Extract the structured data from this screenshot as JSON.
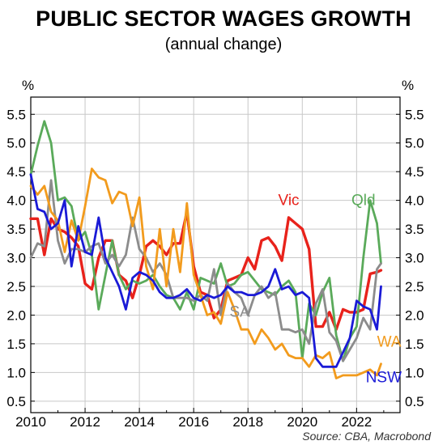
{
  "title": "PUBLIC SECTOR WAGES GROWTH",
  "subtitle": "(annual change)",
  "source": "Source: CBA, Macrobond",
  "chart_data": {
    "type": "line",
    "title": "PUBLIC SECTOR WAGES GROWTH",
    "subtitle": "(annual change)",
    "y_unit_left": "%",
    "y_unit_right": "%",
    "ylim": [
      0.3,
      5.8
    ],
    "yticks": [
      0.5,
      1.0,
      1.5,
      2.0,
      2.5,
      3.0,
      3.5,
      4.0,
      4.5,
      5.0,
      5.5
    ],
    "ytick_labels": [
      "0.5",
      "1.0",
      "1.5",
      "2.0",
      "2.5",
      "3.0",
      "3.5",
      "4.0",
      "4.5",
      "5.0",
      "5.5"
    ],
    "xlim": [
      2010,
      2023.6
    ],
    "xticks": [
      2010,
      2012,
      2014,
      2016,
      2018,
      2020,
      2022
    ],
    "xtick_labels": [
      "2010",
      "2012",
      "2014",
      "2016",
      "2018",
      "2020",
      "2022"
    ],
    "grid": true,
    "series": [
      {
        "name": "Vic",
        "color": "#e8221b",
        "x": [
          2010.0,
          2010.25,
          2010.5,
          2010.75,
          2011.0,
          2011.25,
          2011.5,
          2011.75,
          2012.0,
          2012.25,
          2012.5,
          2012.75,
          2013.0,
          2013.25,
          2013.5,
          2013.75,
          2014.0,
          2014.25,
          2014.5,
          2014.75,
          2015.0,
          2015.25,
          2015.5,
          2015.75,
          2016.0,
          2016.25,
          2016.5,
          2016.75,
          2017.0,
          2017.25,
          2017.5,
          2017.75,
          2018.0,
          2018.25,
          2018.5,
          2018.75,
          2019.0,
          2019.25,
          2019.5,
          2019.75,
          2020.0,
          2020.25,
          2020.5,
          2020.75,
          2021.0,
          2021.25,
          2021.5,
          2021.75,
          2022.0,
          2022.25,
          2022.5,
          2022.75,
          2022.9
        ],
        "y": [
          3.68,
          3.68,
          3.05,
          3.68,
          3.5,
          3.45,
          3.35,
          3.2,
          2.55,
          2.45,
          3.0,
          3.3,
          3.3,
          2.7,
          2.6,
          2.3,
          2.7,
          3.2,
          3.3,
          3.2,
          3.05,
          3.25,
          3.25,
          3.8,
          2.85,
          2.4,
          2.35,
          1.95,
          2.1,
          2.6,
          2.65,
          2.7,
          3.0,
          2.8,
          3.3,
          3.35,
          3.2,
          2.95,
          3.7,
          3.6,
          3.5,
          3.15,
          1.8,
          1.8,
          2.05,
          1.75,
          2.1,
          2.05,
          2.05,
          2.1,
          2.72,
          2.75,
          2.78
        ]
      },
      {
        "name": "Qld",
        "color": "#5aaa5a",
        "x": [
          2010.0,
          2010.25,
          2010.5,
          2010.75,
          2011.0,
          2011.25,
          2011.5,
          2011.75,
          2012.0,
          2012.25,
          2012.5,
          2012.75,
          2013.0,
          2013.25,
          2013.5,
          2013.75,
          2014.0,
          2014.25,
          2014.5,
          2014.75,
          2015.0,
          2015.25,
          2015.5,
          2015.75,
          2016.0,
          2016.25,
          2016.5,
          2016.75,
          2017.0,
          2017.25,
          2017.5,
          2017.75,
          2018.0,
          2018.25,
          2018.5,
          2018.75,
          2019.0,
          2019.25,
          2019.5,
          2019.75,
          2020.0,
          2020.25,
          2020.5,
          2020.75,
          2021.0,
          2021.25,
          2021.5,
          2021.75,
          2022.0,
          2022.25,
          2022.5,
          2022.75,
          2022.9
        ],
        "y": [
          4.45,
          4.95,
          5.38,
          5.0,
          4.0,
          4.05,
          3.9,
          3.3,
          3.45,
          3.05,
          2.1,
          2.7,
          3.3,
          2.7,
          2.45,
          2.6,
          2.55,
          2.6,
          2.7,
          2.5,
          2.35,
          2.3,
          2.1,
          2.4,
          2.1,
          2.65,
          2.6,
          2.55,
          2.9,
          2.5,
          2.55,
          2.7,
          2.75,
          2.6,
          2.45,
          2.4,
          2.35,
          2.5,
          2.6,
          2.4,
          1.25,
          2.2,
          2.0,
          2.4,
          2.65,
          1.65,
          1.2,
          1.6,
          1.8,
          3.0,
          4.0,
          3.6,
          2.9
        ]
      },
      {
        "name": "SA",
        "color": "#8c8c8c",
        "x": [
          2010.0,
          2010.25,
          2010.5,
          2010.75,
          2011.0,
          2011.25,
          2011.5,
          2011.75,
          2012.0,
          2012.25,
          2012.5,
          2012.75,
          2013.0,
          2013.25,
          2013.5,
          2013.75,
          2014.0,
          2014.25,
          2014.5,
          2014.75,
          2015.0,
          2015.25,
          2015.5,
          2015.75,
          2016.0,
          2016.25,
          2016.5,
          2016.75,
          2017.0,
          2017.25,
          2017.5,
          2017.75,
          2018.0,
          2018.25,
          2018.5,
          2018.75,
          2019.0,
          2019.25,
          2019.5,
          2019.75,
          2020.0,
          2020.25,
          2020.5,
          2020.75,
          2021.0,
          2021.25,
          2021.5,
          2021.75,
          2022.0,
          2022.25,
          2022.5,
          2022.75,
          2022.9
        ],
        "y": [
          3.0,
          3.25,
          3.2,
          4.35,
          3.3,
          2.9,
          3.15,
          3.15,
          3.1,
          3.2,
          3.25,
          2.9,
          3.05,
          2.85,
          3.05,
          3.7,
          3.15,
          3.0,
          2.75,
          2.9,
          2.7,
          2.3,
          2.3,
          2.3,
          2.25,
          2.35,
          2.25,
          2.8,
          2.0,
          2.55,
          2.4,
          2.3,
          2.0,
          2.35,
          2.5,
          2.3,
          2.4,
          1.75,
          1.75,
          1.7,
          1.75,
          1.5,
          2.2,
          2.45,
          1.7,
          1.55,
          1.2,
          1.4,
          1.6,
          1.95,
          1.75,
          2.8,
          2.9
        ]
      },
      {
        "name": "WA",
        "color": "#f29b1d",
        "x": [
          2010.0,
          2010.25,
          2010.5,
          2010.75,
          2011.0,
          2011.25,
          2011.5,
          2011.75,
          2012.0,
          2012.25,
          2012.5,
          2012.75,
          2013.0,
          2013.25,
          2013.5,
          2013.75,
          2014.0,
          2014.25,
          2014.5,
          2014.75,
          2015.0,
          2015.25,
          2015.5,
          2015.75,
          2016.0,
          2016.25,
          2016.5,
          2016.75,
          2017.0,
          2017.25,
          2017.5,
          2017.75,
          2018.0,
          2018.25,
          2018.5,
          2018.75,
          2019.0,
          2019.25,
          2019.5,
          2019.75,
          2020.0,
          2020.25,
          2020.5,
          2020.75,
          2021.0,
          2021.25,
          2021.5,
          2021.75,
          2022.0,
          2022.25,
          2022.5,
          2022.75,
          2022.9
        ],
        "y": [
          4.25,
          4.1,
          4.25,
          3.8,
          3.65,
          3.1,
          3.65,
          3.3,
          3.9,
          4.55,
          4.4,
          4.35,
          3.95,
          4.15,
          4.1,
          3.55,
          4.05,
          2.85,
          2.45,
          3.5,
          2.5,
          3.5,
          2.75,
          3.95,
          2.7,
          2.35,
          2.0,
          2.05,
          1.85,
          2.4,
          2.1,
          1.75,
          1.75,
          1.5,
          1.75,
          1.6,
          1.4,
          1.5,
          1.3,
          1.25,
          1.25,
          1.1,
          1.3,
          1.25,
          1.35,
          0.9,
          0.95,
          0.95,
          0.95,
          1.0,
          1.05,
          0.95,
          1.15
        ]
      },
      {
        "name": "NSW",
        "color": "#1a1ad6",
        "x": [
          2010.0,
          2010.25,
          2010.5,
          2010.75,
          2011.0,
          2011.25,
          2011.5,
          2011.75,
          2012.0,
          2012.25,
          2012.5,
          2012.75,
          2013.0,
          2013.25,
          2013.5,
          2013.75,
          2014.0,
          2014.25,
          2014.5,
          2014.75,
          2015.0,
          2015.25,
          2015.5,
          2015.75,
          2016.0,
          2016.25,
          2016.5,
          2016.75,
          2017.0,
          2017.25,
          2017.5,
          2017.75,
          2018.0,
          2018.25,
          2018.5,
          2018.75,
          2019.0,
          2019.25,
          2019.5,
          2019.75,
          2020.0,
          2020.25,
          2020.5,
          2020.75,
          2021.0,
          2021.25,
          2021.5,
          2021.75,
          2022.0,
          2022.25,
          2022.5,
          2022.75,
          2022.9
        ],
        "y": [
          4.45,
          3.85,
          3.8,
          3.5,
          3.6,
          4.0,
          2.85,
          3.55,
          3.1,
          3.05,
          3.7,
          3.0,
          2.75,
          2.5,
          2.1,
          2.65,
          2.75,
          2.7,
          2.6,
          2.4,
          2.3,
          2.3,
          2.35,
          2.45,
          2.3,
          2.25,
          2.35,
          2.3,
          2.35,
          2.5,
          2.4,
          2.4,
          2.35,
          2.35,
          2.4,
          2.5,
          2.8,
          2.45,
          2.5,
          2.35,
          2.4,
          2.3,
          1.25,
          1.1,
          1.1,
          1.1,
          1.35,
          1.6,
          2.25,
          2.15,
          2.1,
          1.75,
          2.5
        ]
      }
    ],
    "annotations": [
      {
        "text": "Vic",
        "series": "Vic",
        "at": [
          2019.5,
          3.92
        ]
      },
      {
        "text": "Qld",
        "series": "Qld",
        "at": [
          2022.25,
          3.92
        ]
      },
      {
        "text": "SA",
        "series": "SA",
        "at": [
          2017.7,
          1.97
        ]
      },
      {
        "text": "WA",
        "series": "WA",
        "at": [
          2023.2,
          1.45
        ]
      },
      {
        "text": "NSW",
        "series": "NSW",
        "at": [
          2023.0,
          0.83
        ]
      }
    ],
    "source": "Source: CBA, Macrobond"
  }
}
